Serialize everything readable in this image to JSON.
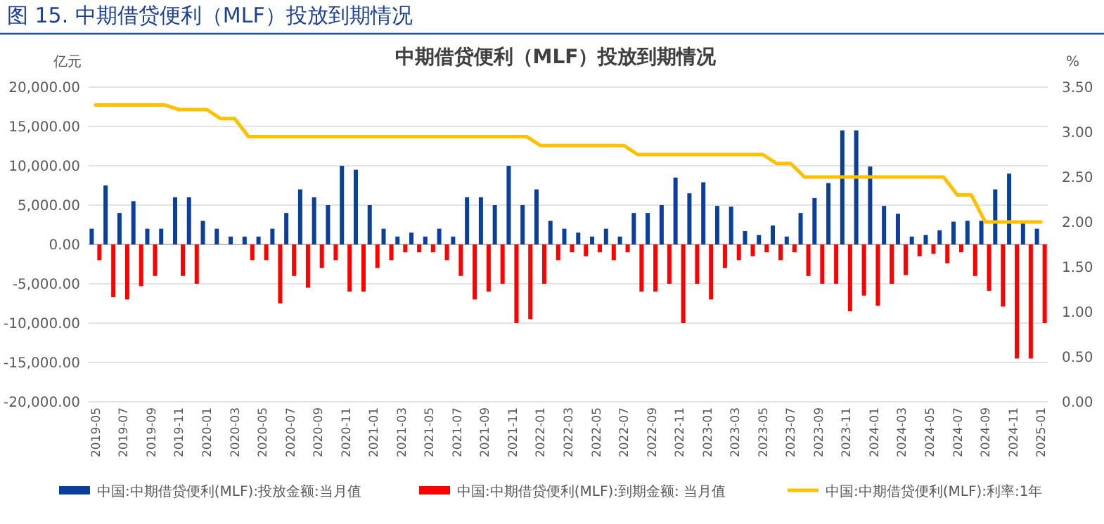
{
  "chart_data": {
    "type": "bar",
    "title": "图 15. 中期借贷便利（MLF）投放到期情况",
    "subtitle": "中期借贷便利（MLF）投放到期情况",
    "ylabel": "亿元",
    "y2label": "%",
    "categories": [
      "2019-05",
      null,
      "2019-07",
      null,
      "2019-09",
      null,
      "2019-11",
      null,
      "2020-01",
      null,
      "2020-03",
      null,
      "2020-05",
      null,
      "2020-07",
      null,
      "2020-09",
      null,
      "2020-11",
      null,
      "2021-01",
      null,
      "2021-03",
      null,
      "2021-05",
      null,
      "2021-07",
      null,
      "2021-09",
      null,
      "2021-11",
      null,
      "2022-01",
      null,
      "2022-03",
      null,
      "2022-05",
      null,
      "2022-07",
      null,
      "2022-09",
      null,
      "2022-11",
      null,
      "2023-01",
      null,
      "2023-03",
      null,
      "2023-05",
      null,
      "2023-07",
      null,
      "2023-09",
      null,
      "2023-11",
      null,
      "2024-01",
      null,
      "2024-03",
      null,
      "2024-05",
      null,
      "2024-07",
      null,
      "2024-09",
      null,
      "2024-11",
      null,
      "2025-01"
    ],
    "series": [
      {
        "name": "中国:中期借贷便利(MLF):投放金额:当月值",
        "color": "#0b3f9a",
        "values": [
          2000,
          7500,
          4000,
          5500,
          2000,
          2000,
          6000,
          6000,
          3000,
          2000,
          1000,
          1000,
          1000,
          2000,
          4000,
          7000,
          6000,
          5000,
          10000,
          9500,
          5000,
          2000,
          1000,
          1500,
          1000,
          2000,
          1000,
          6000,
          6000,
          5000,
          10000,
          5000,
          7000,
          3000,
          2000,
          1500,
          1000,
          2000,
          1000,
          4000,
          4000,
          5000,
          8500,
          6500,
          7900,
          4900,
          4800,
          1700,
          1200,
          2400,
          1000,
          4000,
          5900,
          7800,
          14500,
          14500,
          9900,
          4900,
          3900,
          1000,
          1200,
          1800,
          2900,
          3000,
          3000,
          7000,
          9000,
          3000,
          2000
        ]
      },
      {
        "name": "中国:中期借贷便利(MLF):到期金额: 当月值",
        "color": "#ff0000",
        "values": [
          -2000,
          -6700,
          -7000,
          -5300,
          -4000,
          0,
          -4000,
          -5000,
          0,
          0,
          0,
          -2000,
          -2000,
          -7500,
          -4000,
          -5500,
          -3000,
          -2000,
          -6000,
          -6000,
          -3000,
          -2000,
          -1000,
          -1000,
          -1000,
          -2000,
          -4000,
          -7000,
          -6000,
          -5000,
          -10000,
          -9500,
          -5000,
          -2000,
          -1000,
          -1500,
          -1000,
          -2000,
          -1000,
          -6000,
          -6000,
          -5000,
          -10000,
          -5000,
          -7000,
          -3000,
          -2000,
          -1500,
          -1000,
          -2000,
          -1000,
          -4000,
          -5000,
          -5000,
          -8500,
          -6500,
          -7800,
          -5000,
          -3900,
          -1500,
          -1200,
          -2400,
          -1000,
          -4000,
          -5900,
          -7900,
          -14500,
          -14500,
          -10000
        ]
      },
      {
        "name": "中国:中期借贷便利(MLF):利率:1年",
        "type": "line",
        "axis": "y2",
        "color": "#ffc000",
        "values": [
          3.3,
          3.3,
          3.3,
          3.3,
          3.3,
          3.3,
          3.25,
          3.25,
          3.25,
          3.15,
          3.15,
          2.95,
          2.95,
          2.95,
          2.95,
          2.95,
          2.95,
          2.95,
          2.95,
          2.95,
          2.95,
          2.95,
          2.95,
          2.95,
          2.95,
          2.95,
          2.95,
          2.95,
          2.95,
          2.95,
          2.95,
          2.95,
          2.85,
          2.85,
          2.85,
          2.85,
          2.85,
          2.85,
          2.85,
          2.75,
          2.75,
          2.75,
          2.75,
          2.75,
          2.75,
          2.75,
          2.75,
          2.75,
          2.75,
          2.65,
          2.65,
          2.5,
          2.5,
          2.5,
          2.5,
          2.5,
          2.5,
          2.5,
          2.5,
          2.5,
          2.5,
          2.5,
          2.3,
          2.3,
          2.0,
          2.0,
          2.0,
          2.0,
          2.0
        ]
      }
    ],
    "ylim": [
      -20000,
      20000
    ],
    "yticks": [
      {
        "value": -20000,
        "label": "-20,000.00"
      },
      {
        "value": -15000,
        "label": "-15,000.00"
      },
      {
        "value": -10000,
        "label": "-10,000.00"
      },
      {
        "value": -5000,
        "label": "-5,000.00"
      },
      {
        "value": 0,
        "label": "0.00"
      },
      {
        "value": 5000,
        "label": "5,000.00"
      },
      {
        "value": 10000,
        "label": "10,000.00"
      },
      {
        "value": 15000,
        "label": "15,000.00"
      },
      {
        "value": 20000,
        "label": "20,000.00"
      }
    ],
    "y2lim": [
      0,
      3.5
    ],
    "y2ticks": [
      {
        "value": 0,
        "label": "0.00"
      },
      {
        "value": 0.5,
        "label": "0.50"
      },
      {
        "value": 1,
        "label": "1.00"
      },
      {
        "value": 1.5,
        "label": "1.50"
      },
      {
        "value": 2,
        "label": "2.00"
      },
      {
        "value": 2.5,
        "label": "2.50"
      },
      {
        "value": 3,
        "label": "3.00"
      },
      {
        "value": 3.5,
        "label": "3.50"
      }
    ],
    "grid": "y",
    "legend": "bottom"
  }
}
